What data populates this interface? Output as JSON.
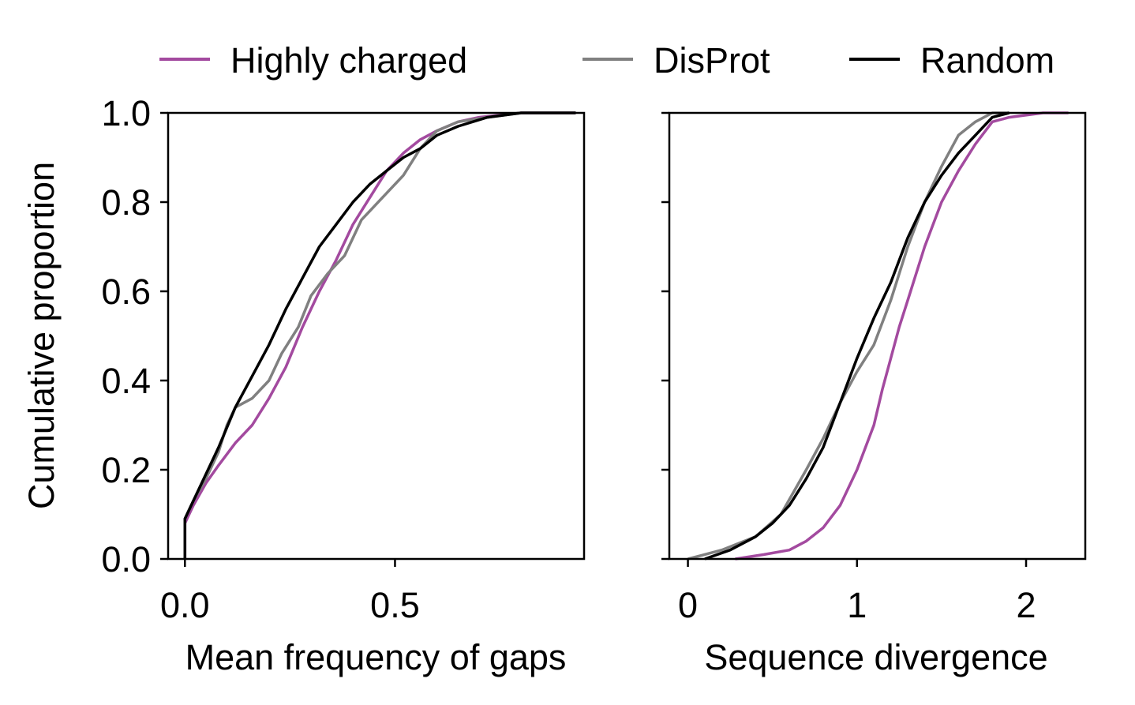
{
  "legend": [
    {
      "label": "Highly charged",
      "color": "#a34a9f"
    },
    {
      "label": "DisProt",
      "color": "#808080"
    },
    {
      "label": "Random",
      "color": "#000000"
    }
  ],
  "y_axis_title": "Cumulative proportion",
  "chart_data": [
    {
      "type": "line",
      "kind": "empirical-cdf",
      "xlabel": "Mean frequency of gaps",
      "ylabel": "Cumulative proportion",
      "xlim": [
        -0.04,
        0.95
      ],
      "ylim": [
        0,
        1
      ],
      "xticks": [
        0.0,
        0.5
      ],
      "xtick_labels": [
        "0.0",
        "0.5"
      ],
      "yticks": [
        0.0,
        0.2,
        0.4,
        0.6,
        0.8,
        1.0
      ],
      "ytick_labels": [
        "0.0",
        "0.2",
        "0.4",
        "0.6",
        "0.8",
        "1.0"
      ],
      "grid": false,
      "legend_position": "top",
      "series": [
        {
          "name": "Highly charged",
          "color": "#a34a9f",
          "x": [
            0.0,
            0.0,
            0.02,
            0.05,
            0.08,
            0.12,
            0.16,
            0.2,
            0.24,
            0.28,
            0.32,
            0.36,
            0.4,
            0.44,
            0.48,
            0.52,
            0.56,
            0.6,
            0.65,
            0.7,
            0.8,
            0.93
          ],
          "y": [
            0.0,
            0.08,
            0.12,
            0.17,
            0.21,
            0.26,
            0.3,
            0.36,
            0.43,
            0.52,
            0.6,
            0.67,
            0.75,
            0.81,
            0.87,
            0.91,
            0.94,
            0.96,
            0.98,
            0.99,
            1.0,
            1.0
          ]
        },
        {
          "name": "DisProt",
          "color": "#808080",
          "x": [
            0.0,
            0.0,
            0.02,
            0.05,
            0.08,
            0.1,
            0.12,
            0.16,
            0.2,
            0.23,
            0.27,
            0.3,
            0.34,
            0.38,
            0.42,
            0.44,
            0.48,
            0.52,
            0.56,
            0.6,
            0.65,
            0.72,
            0.8,
            0.93
          ],
          "y": [
            0.0,
            0.09,
            0.13,
            0.18,
            0.24,
            0.3,
            0.34,
            0.36,
            0.4,
            0.46,
            0.52,
            0.59,
            0.64,
            0.68,
            0.76,
            0.78,
            0.82,
            0.86,
            0.92,
            0.96,
            0.98,
            0.99,
            1.0,
            1.0
          ]
        },
        {
          "name": "Random",
          "color": "#000000",
          "x": [
            0.0,
            0.0,
            0.02,
            0.05,
            0.08,
            0.12,
            0.16,
            0.2,
            0.24,
            0.28,
            0.32,
            0.36,
            0.4,
            0.44,
            0.48,
            0.52,
            0.56,
            0.6,
            0.65,
            0.72,
            0.8,
            0.93
          ],
          "y": [
            0.0,
            0.09,
            0.13,
            0.19,
            0.25,
            0.34,
            0.41,
            0.48,
            0.56,
            0.63,
            0.7,
            0.75,
            0.8,
            0.84,
            0.87,
            0.9,
            0.92,
            0.95,
            0.97,
            0.99,
            1.0,
            1.0
          ]
        }
      ]
    },
    {
      "type": "line",
      "kind": "empirical-cdf",
      "xlabel": "Sequence divergence",
      "ylabel": "",
      "xlim": [
        -0.11,
        2.35
      ],
      "ylim": [
        0,
        1
      ],
      "xticks": [
        0,
        1,
        2
      ],
      "xtick_labels": [
        "0",
        "1",
        "2"
      ],
      "yticks": [
        0.0,
        0.2,
        0.4,
        0.6,
        0.8,
        1.0
      ],
      "ytick_labels": [
        "",
        "",
        "",
        "",
        "",
        ""
      ],
      "grid": false,
      "series": [
        {
          "name": "Highly charged",
          "color": "#a34a9f",
          "x": [
            0.28,
            0.45,
            0.6,
            0.7,
            0.8,
            0.9,
            1.0,
            1.1,
            1.15,
            1.2,
            1.25,
            1.3,
            1.35,
            1.4,
            1.5,
            1.6,
            1.7,
            1.8,
            1.9,
            2.1,
            2.25
          ],
          "y": [
            0.0,
            0.01,
            0.02,
            0.04,
            0.07,
            0.12,
            0.2,
            0.3,
            0.38,
            0.45,
            0.52,
            0.58,
            0.64,
            0.7,
            0.8,
            0.87,
            0.93,
            0.98,
            0.99,
            1.0,
            1.0
          ]
        },
        {
          "name": "DisProt",
          "color": "#808080",
          "x": [
            0.0,
            0.2,
            0.4,
            0.55,
            0.7,
            0.8,
            0.9,
            1.0,
            1.1,
            1.2,
            1.3,
            1.4,
            1.5,
            1.6,
            1.7,
            1.8,
            1.9
          ],
          "y": [
            0.0,
            0.02,
            0.05,
            0.1,
            0.2,
            0.27,
            0.35,
            0.42,
            0.48,
            0.58,
            0.7,
            0.8,
            0.88,
            0.95,
            0.98,
            1.0,
            1.0
          ]
        },
        {
          "name": "Random",
          "color": "#000000",
          "x": [
            0.1,
            0.25,
            0.4,
            0.5,
            0.6,
            0.7,
            0.8,
            0.9,
            1.0,
            1.1,
            1.2,
            1.3,
            1.4,
            1.5,
            1.6,
            1.7,
            1.8,
            1.9
          ],
          "y": [
            0.0,
            0.02,
            0.05,
            0.08,
            0.12,
            0.18,
            0.25,
            0.35,
            0.45,
            0.54,
            0.62,
            0.72,
            0.8,
            0.86,
            0.91,
            0.95,
            0.99,
            1.0
          ]
        }
      ]
    }
  ]
}
